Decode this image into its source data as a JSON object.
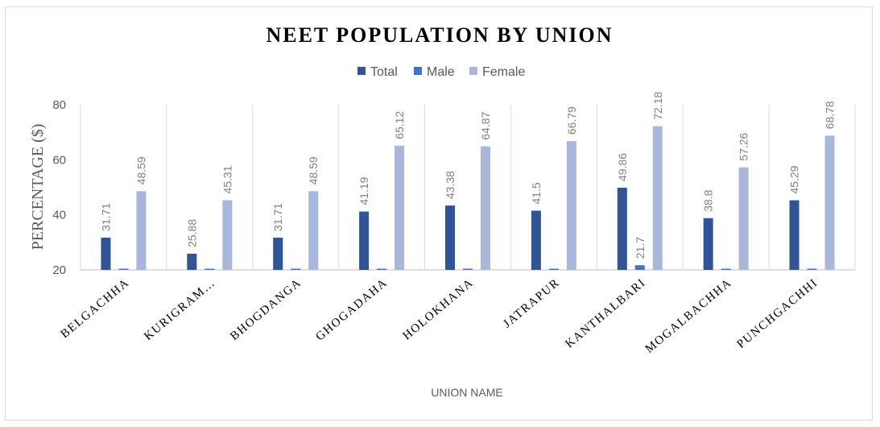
{
  "chart_data": {
    "type": "bar",
    "title": "NEET POPULATION BY UNION",
    "xlabel": "UNION NAME",
    "ylabel": "PERCENTAGE ($)",
    "ylim": [
      20,
      80
    ],
    "yticks": [
      20,
      40,
      60,
      80
    ],
    "legend_position": "top",
    "grid": "vertical category separators",
    "categories": [
      "BELGACHHA",
      "KURIGRAM…",
      "BHOGDANGA",
      "GHOGADAHA",
      "HOLOKHANA",
      "JATRAPUR",
      "KANTHALBARI",
      "MOGALBACHHA",
      "PUNCHGACHHI"
    ],
    "series": [
      {
        "name": "Total",
        "color": "#2f5597",
        "values": [
          31.71,
          25.88,
          31.71,
          41.19,
          43.38,
          41.5,
          49.86,
          38.8,
          45.29
        ],
        "labels": [
          "31.71",
          "25.88",
          "31.71",
          "41.19",
          "43.38",
          "41.5",
          "49.86",
          "38.8",
          "45.29"
        ]
      },
      {
        "name": "Male",
        "color": "#4472c4",
        "values": [
          20,
          20,
          20,
          20,
          20,
          20,
          21.7,
          20,
          20
        ],
        "labels": [
          "",
          "",
          "",
          "",
          "",
          "",
          "21.7",
          "",
          ""
        ]
      },
      {
        "name": "Female",
        "color": "#a9b7dd",
        "values": [
          48.59,
          45.31,
          48.59,
          65.12,
          64.87,
          66.79,
          72.18,
          57.26,
          68.78
        ],
        "labels": [
          "48.59",
          "45.31",
          "48.59",
          "65.12",
          "64.87",
          "66.79",
          "72.18",
          "57.26",
          "68.78"
        ]
      }
    ]
  }
}
